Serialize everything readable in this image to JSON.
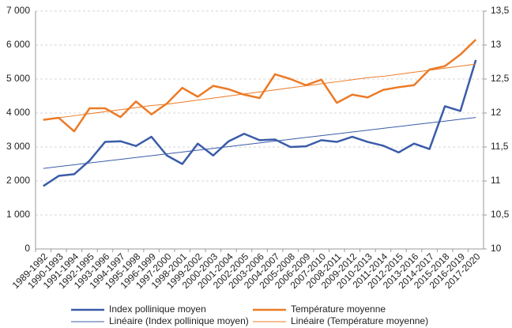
{
  "chart_data": {
    "type": "line",
    "categories": [
      "1989-1992",
      "1990-1993",
      "1991-1994",
      "1992-1995",
      "1993-1996",
      "1994-1997",
      "1995-1998",
      "1996-1999",
      "1997-2000",
      "1998-2001",
      "1999-2002",
      "2000-2003",
      "2001-2004",
      "2002-2005",
      "2003-2006",
      "2004-2007",
      "2005-2008",
      "2006-2009",
      "2007-2010",
      "2008-2011",
      "2009-2012",
      "2010-2013",
      "2011-2014",
      "2012-2015",
      "2013-2016",
      "2014-2017",
      "2015-2018",
      "2016-2019",
      "2017-2020"
    ],
    "series": [
      {
        "name": "Index pollinique moyen",
        "color": "#3a5ca8",
        "line_width": 2.5,
        "values": [
          1850,
          2150,
          2200,
          2600,
          3150,
          3170,
          3030,
          3300,
          2750,
          2500,
          3100,
          2750,
          3170,
          3390,
          3200,
          3220,
          3000,
          3020,
          3200,
          3150,
          3300,
          3150,
          3040,
          2840,
          3100,
          2940,
          4200,
          4060,
          5560
        ]
      },
      {
        "name": "Température moyenne",
        "color": "#ec7a26",
        "line_width": 2.5,
        "axis": "y2",
        "values": [
          11.9,
          11.93,
          11.73,
          12.07,
          12.07,
          11.94,
          12.17,
          11.98,
          12.14,
          12.37,
          12.24,
          12.4,
          12.35,
          12.27,
          12.22,
          12.57,
          12.5,
          12.41,
          12.49,
          12.15,
          12.27,
          12.23,
          12.34,
          12.38,
          12.41,
          12.64,
          12.69,
          12.86,
          13.08
        ]
      },
      {
        "name": "Linéaire (Index pollinique moyen)",
        "color": "#3a5ca8",
        "line_width": 1,
        "values": [
          2370,
          2424,
          2477,
          2531,
          2584,
          2638,
          2691,
          2745,
          2799,
          2852,
          2906,
          2959,
          3013,
          3066,
          3120,
          3174,
          3227,
          3281,
          3334,
          3388,
          3441,
          3495,
          3549,
          3602,
          3656,
          3709,
          3763,
          3816,
          3870
        ]
      },
      {
        "name": "Linéaire (Température moyenne)",
        "color": "#ec7a26",
        "line_width": 1,
        "axis": "y2",
        "values": [
          11.9,
          11.93,
          11.96,
          11.99,
          12.02,
          12.05,
          12.08,
          12.11,
          12.13,
          12.16,
          12.19,
          12.22,
          12.25,
          12.28,
          12.31,
          12.34,
          12.37,
          12.4,
          12.43,
          12.46,
          12.49,
          12.52,
          12.54,
          12.57,
          12.6,
          12.63,
          12.66,
          12.69,
          12.72
        ]
      }
    ],
    "ylim": [
      0,
      7000
    ],
    "yticks": [
      0,
      {
        "value": 1000,
        "label": "1 000"
      },
      {
        "value": 2000,
        "label": "2 000"
      },
      {
        "value": 3000,
        "label": "3 000"
      },
      {
        "value": 4000,
        "label": "4 000"
      },
      {
        "value": 5000,
        "label": "5 000"
      },
      {
        "value": 6000,
        "label": "6 000"
      },
      {
        "value": 7000,
        "label": "7 000"
      }
    ],
    "y2lim": [
      10,
      13.5
    ],
    "y2ticks": [
      10,
      {
        "value": 10.5,
        "label": "10,5"
      },
      11,
      {
        "value": 11.5,
        "label": "11,5"
      },
      12,
      {
        "value": 12.5,
        "label": "12,5"
      },
      13,
      {
        "value": 13.5,
        "label": "13,5"
      }
    ],
    "grid": true
  }
}
